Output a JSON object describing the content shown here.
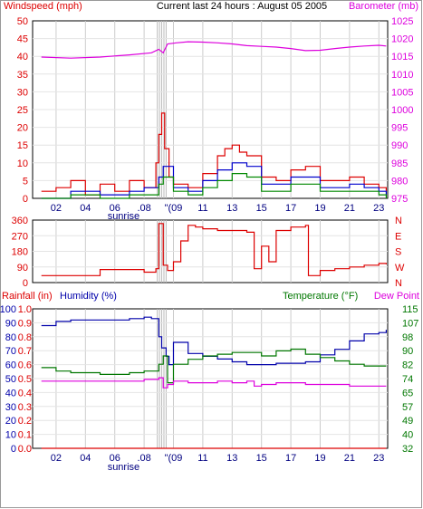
{
  "title": "Current last 24 hours : August 05 2005",
  "colors": {
    "wind": "#dd0000",
    "gust_blue": "#0000cc",
    "wind_green": "#008800",
    "barometer": "#dd00dd",
    "direction": "#dd0000",
    "humidity": "#0000aa",
    "temperature": "#007700",
    "dewpoint": "#dd00dd",
    "rainfall": "#dd0000",
    "grid": "#cccccc",
    "frame": "#000000"
  },
  "hour_labels": [
    "02",
    "04",
    "06",
    ".08",
    "\"(09",
    "11",
    "13",
    "15",
    "17",
    "19",
    "21",
    "23"
  ],
  "sunrise_label": "sunrise",
  "chart_data": [
    {
      "type": "line",
      "name": "wind-barometer",
      "left_label": "Windspeed (mph)",
      "right_label": "Barometer (mb)",
      "left_ticks": [
        "0",
        "5",
        "10",
        "15",
        "20",
        "25",
        "30",
        "35",
        "40",
        "45",
        "50"
      ],
      "right_ticks": [
        "975",
        "980",
        "985",
        "990",
        "995",
        "1000",
        "1005",
        "1010",
        "1015",
        "1020",
        "1025"
      ],
      "ylim_left": [
        0,
        50
      ],
      "ylim_right": [
        975,
        1025
      ],
      "series": [
        {
          "role": "barometer",
          "x": [
            0,
            2,
            4,
            6,
            7.5,
            8.0,
            8.3,
            8.6,
            9.2,
            10,
            11,
            12,
            13,
            14,
            15,
            16,
            17,
            18,
            19,
            20,
            21,
            22,
            23,
            23.5
          ],
          "values": [
            1014.8,
            1014.5,
            1014.8,
            1015.4,
            1016.0,
            1017.0,
            1016.0,
            1018.5,
            1018.8,
            1019.1,
            1019.0,
            1018.8,
            1018.5,
            1018.0,
            1017.8,
            1017.6,
            1017.2,
            1016.6,
            1016.7,
            1017.2,
            1017.6,
            1017.9,
            1018.1,
            1017.9
          ]
        },
        {
          "role": "windspeed",
          "x": [
            0,
            1,
            2,
            3,
            4,
            5,
            6,
            7,
            7.8,
            8.0,
            8.2,
            8.4,
            8.7,
            9,
            10,
            11,
            12,
            12.5,
            13,
            13.5,
            14,
            15,
            16,
            17,
            18,
            19,
            20,
            21,
            22,
            23,
            23.5
          ],
          "values": [
            2,
            3,
            5,
            1,
            4,
            2,
            5,
            3,
            10,
            18,
            24,
            14,
            6,
            4,
            3,
            7,
            12,
            14,
            15,
            13,
            12,
            6,
            5,
            8,
            9,
            5,
            5,
            6,
            4,
            3,
            2
          ]
        },
        {
          "role": "windspeed-avg",
          "x": [
            0,
            2,
            4,
            6,
            7,
            8,
            8.3,
            9,
            10,
            11,
            12,
            13,
            14,
            15,
            16,
            17,
            18,
            19,
            20,
            21,
            22,
            23,
            23.5
          ],
          "values": [
            0,
            2,
            1,
            2,
            3,
            6,
            9,
            3,
            2,
            5,
            8,
            10,
            9,
            4,
            4,
            6,
            6,
            3,
            3,
            4,
            3,
            2,
            1
          ]
        },
        {
          "role": "windspeed-min",
          "x": [
            0,
            2,
            4,
            6,
            7,
            8,
            8.3,
            9,
            10,
            11,
            12,
            13,
            14,
            15,
            16,
            17,
            18,
            19,
            20,
            21,
            22,
            23,
            23.5
          ],
          "values": [
            0,
            1,
            0,
            1,
            1,
            4,
            6,
            2,
            1,
            3,
            5,
            7,
            6,
            2,
            2,
            4,
            4,
            2,
            2,
            2,
            2,
            1,
            0
          ]
        }
      ]
    },
    {
      "type": "line",
      "name": "wind-direction",
      "left_ticks": [
        "0",
        "90",
        "180",
        "270",
        "360"
      ],
      "right_ticks": [
        "N",
        "W",
        "S",
        "E",
        "N"
      ],
      "ylim_left": [
        0,
        360
      ],
      "series": [
        {
          "role": "direction",
          "x": [
            0,
            1,
            2,
            3,
            4,
            5,
            6,
            7,
            7.8,
            8.0,
            8.3,
            8.6,
            9,
            9.5,
            10,
            10.5,
            11,
            12,
            13,
            14,
            14.5,
            15,
            15.5,
            16,
            17,
            18,
            18.2,
            19,
            20,
            21,
            22,
            23,
            23.5
          ],
          "values": [
            40,
            40,
            40,
            40,
            75,
            75,
            75,
            60,
            80,
            340,
            100,
            70,
            120,
            240,
            330,
            320,
            310,
            300,
            300,
            290,
            80,
            210,
            120,
            300,
            320,
            330,
            40,
            70,
            80,
            90,
            100,
            110,
            105
          ]
        }
      ]
    },
    {
      "type": "line",
      "name": "rain-humidity-temperature",
      "rain_label": "Rainfall (in)",
      "humidity_label": "Humidity (%)",
      "temp_label": "Temperature (°F)",
      "dew_label": "Dew Point",
      "rain_ticks": [
        "0.0",
        "0.1",
        "0.2",
        "0.3",
        "0.4",
        "0.5",
        "0.6",
        "0.7",
        "0.8",
        "0.9",
        "1.0"
      ],
      "humidity_ticks": [
        "0",
        "10",
        "20",
        "30",
        "40",
        "50",
        "60",
        "70",
        "80",
        "90",
        "100"
      ],
      "temp_ticks": [
        "32",
        "40",
        "49",
        "57",
        "65",
        "74",
        "82",
        "90",
        "98",
        "107",
        "115"
      ],
      "ylim_humidity": [
        0,
        100
      ],
      "ylim_temp": [
        32,
        115
      ],
      "series": [
        {
          "role": "humidity",
          "x": [
            0,
            1,
            2,
            4,
            6,
            7,
            7.5,
            8.0,
            8.2,
            8.5,
            8.7,
            9,
            10,
            11,
            12,
            13,
            14,
            15,
            16,
            17,
            18,
            19,
            20,
            21,
            22,
            23,
            23.5
          ],
          "values": [
            88,
            91,
            92,
            92,
            93,
            94,
            93,
            80,
            72,
            66,
            60,
            76,
            68,
            66,
            64,
            62,
            60,
            60,
            61,
            61,
            62,
            67,
            71,
            77,
            82,
            83,
            85
          ]
        },
        {
          "role": "temperature",
          "x": [
            0,
            1,
            2,
            4,
            6,
            7,
            7.5,
            8.0,
            8.3,
            8.6,
            9,
            10,
            11,
            12,
            13,
            14,
            15,
            16,
            17,
            18,
            19,
            20,
            21,
            22,
            23,
            23.5
          ],
          "values": [
            80,
            78,
            77,
            76,
            77,
            78,
            78,
            82,
            87,
            71,
            82,
            85,
            87,
            88,
            89,
            89,
            87,
            90,
            91,
            88,
            86,
            84,
            82,
            81,
            81,
            81
          ]
        },
        {
          "role": "dewpoint",
          "x": [
            0,
            2,
            4,
            6,
            7,
            8,
            8.3,
            8.6,
            9,
            10,
            11,
            12,
            13,
            14,
            14.5,
            15,
            16,
            17,
            18,
            19,
            20,
            21,
            22,
            23,
            23.5
          ],
          "values": [
            72,
            72,
            72,
            72,
            73,
            74,
            68,
            70,
            72,
            71,
            71,
            72,
            71,
            72,
            69,
            70,
            71,
            71,
            70,
            70,
            70,
            69,
            69,
            69,
            69
          ]
        },
        {
          "role": "rainfall",
          "x": [
            0,
            23.5
          ],
          "values": [
            0.0,
            0.0
          ]
        }
      ]
    }
  ]
}
